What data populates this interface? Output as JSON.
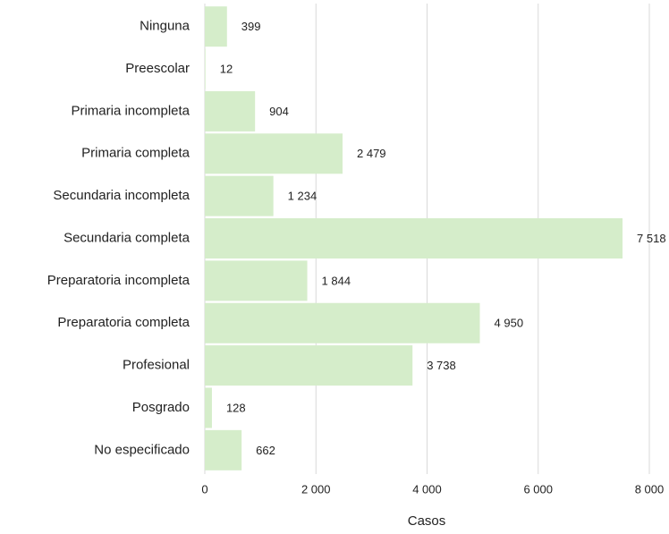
{
  "chart_data": {
    "type": "barh",
    "categories": [
      "Ninguna",
      "Preescolar",
      "Primaria incompleta",
      "Primaria completa",
      "Secundaria incompleta",
      "Secundaria completa",
      "Preparatoria incompleta",
      "Preparatoria completa",
      "Profesional",
      "Posgrado",
      "No especificado"
    ],
    "values": [
      399,
      12,
      904,
      2479,
      1234,
      7518,
      1844,
      4950,
      3738,
      128,
      662
    ],
    "value_labels": [
      "399",
      "12",
      "904",
      "2 479",
      "1 234",
      "7 518",
      "1 844",
      "4 950",
      "3 738",
      "128",
      "662"
    ],
    "color": "#d5edca",
    "xlim": [
      0,
      8000
    ],
    "xticks": [
      0,
      {
        "value": 2000,
        "label": "2 000"
      },
      {
        "value": 4000,
        "label": "4 000"
      },
      {
        "value": 6000,
        "label": "6 000"
      },
      {
        "value": 8000,
        "label": "8 000"
      }
    ],
    "xlabel": "Casos",
    "grid": true
  }
}
